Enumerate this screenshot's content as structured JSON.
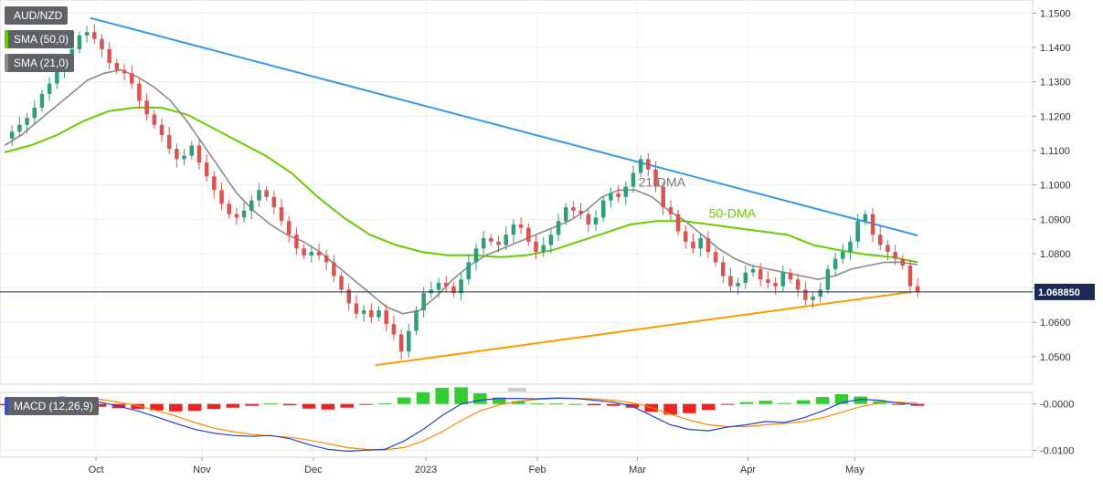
{
  "chart_data": [
    {
      "type": "candlestick",
      "title": "AUD/NZD",
      "legend": [
        {
          "name": "AUD/NZD",
          "color": "#5f6368"
        },
        {
          "name": "SMA (50,0)",
          "color": "#66cc00"
        },
        {
          "name": "SMA (21,0)",
          "color": "#8a8a8a"
        }
      ],
      "ylim": [
        1.042,
        1.1525
      ],
      "yticks": [
        "1.1500",
        "1.1400",
        "1.1300",
        "1.1200",
        "1.1100",
        "1.1000",
        "1.0900",
        "1.0800",
        "1.0700",
        "1.0600",
        "1.0500"
      ],
      "xticks": [
        {
          "label": "Oct",
          "t": 0.096
        },
        {
          "label": "Nov",
          "t": 0.207
        },
        {
          "label": "Dec",
          "t": 0.324
        },
        {
          "label": "2023",
          "t": 0.442
        },
        {
          "label": "Feb",
          "t": 0.559
        },
        {
          "label": "Mar",
          "t": 0.664
        },
        {
          "label": "Apr",
          "t": 0.78
        },
        {
          "label": "May",
          "t": 0.892
        }
      ],
      "current_price": {
        "label": "1.068850",
        "value": 1.06885
      },
      "annotations": [
        {
          "text": "21-DMA",
          "t": 0.665,
          "y": 1.0995,
          "color": "#777777"
        },
        {
          "text": "50-DMA",
          "t": 0.739,
          "y": 1.0905,
          "color": "#66cc00"
        }
      ],
      "trendlines": [
        {
          "name": "resistance",
          "color": "#3399ee",
          "points": [
            [
              0.09,
              1.1486
            ],
            [
              0.958,
              1.0853
            ]
          ]
        },
        {
          "name": "support",
          "color": "#ff9900",
          "points": [
            [
              0.389,
              1.0475
            ],
            [
              0.95,
              1.0688
            ]
          ]
        }
      ],
      "closes": [
        1.1135,
        1.1155,
        1.1175,
        1.1195,
        1.1225,
        1.1265,
        1.1295,
        1.1335,
        1.1355,
        1.1395,
        1.1435,
        1.1445,
        1.1425,
        1.1395,
        1.1355,
        1.1335,
        1.1325,
        1.1295,
        1.1245,
        1.1205,
        1.1175,
        1.1145,
        1.1105,
        1.1075,
        1.1085,
        1.1115,
        1.1065,
        1.1025,
        1.0985,
        1.0945,
        1.0915,
        1.0905,
        1.0925,
        1.0955,
        1.0985,
        1.0965,
        1.0935,
        1.0895,
        1.0855,
        1.0815,
        1.0795,
        1.0805,
        1.0795,
        1.0775,
        1.0735,
        1.0695,
        1.0655,
        1.0625,
        1.0635,
        1.0615,
        1.0635,
        1.0595,
        1.0565,
        1.0515,
        1.0575,
        1.0635,
        1.0685,
        1.0695,
        1.0715,
        1.0705,
        1.0685,
        1.0725,
        1.0775,
        1.0815,
        1.0845,
        1.0835,
        1.0825,
        1.0855,
        1.0885,
        1.0875,
        1.0835,
        1.0805,
        1.0825,
        1.0855,
        1.0895,
        1.0935,
        1.0925,
        1.0915,
        1.0885,
        1.0905,
        1.0955,
        1.0975,
        1.0965,
        1.0995,
        1.1035,
        1.1075,
        1.1045,
        1.0995,
        1.0935,
        1.0915,
        1.0865,
        1.0835,
        1.0815,
        1.0845,
        1.0805,
        1.0775,
        1.0735,
        1.0705,
        1.0715,
        1.0745,
        1.0755,
        1.0725,
        1.0715,
        1.0705,
        1.0745,
        1.0725,
        1.0695,
        1.0665,
        1.0675,
        1.0695,
        1.0755,
        1.0785,
        1.0805,
        1.0835,
        1.0895,
        1.0915,
        1.0855,
        1.0825,
        1.0805,
        1.0785,
        1.0765,
        1.0705,
        1.06885
      ],
      "sma_21": [
        1.1115,
        1.1145,
        1.1185,
        1.1225,
        1.1265,
        1.1305,
        1.1325,
        1.1335,
        1.1315,
        1.1285,
        1.1245,
        1.1185,
        1.1115,
        1.1045,
        1.0975,
        1.0925,
        1.0885,
        1.0855,
        1.0835,
        1.0805,
        1.0765,
        1.0725,
        1.0685,
        1.0645,
        1.0625,
        1.0635,
        1.0675,
        1.0725,
        1.0765,
        1.0795,
        1.0815,
        1.0835,
        1.0855,
        1.0875,
        1.0895,
        1.0925,
        1.0965,
        1.0985,
        1.0985,
        1.0965,
        1.0925,
        1.0895,
        1.0855,
        1.0815,
        1.0785,
        1.0765,
        1.0755,
        1.0745,
        1.0735,
        1.0725,
        1.0735,
        1.0755,
        1.0765,
        1.0775,
        1.0775,
        1.0768
      ],
      "sma_50": [
        1.1095,
        1.1115,
        1.1145,
        1.1185,
        1.1215,
        1.1225,
        1.1225,
        1.1205,
        1.1165,
        1.1125,
        1.1085,
        1.1035,
        1.0965,
        1.0905,
        1.0855,
        1.0825,
        1.0805,
        1.0795,
        1.0795,
        1.079,
        1.0795,
        1.081,
        1.0835,
        1.086,
        1.0885,
        1.0895,
        1.0895,
        1.0885,
        1.0875,
        1.0865,
        1.0855,
        1.0825,
        1.081,
        1.0798,
        1.079,
        1.0775
      ]
    },
    {
      "type": "macd",
      "title": "MACD (12,26,9)",
      "ylim": [
        -0.0115,
        0.0025
      ],
      "yticks": [
        "-0.0000",
        "-0.0100"
      ],
      "macd": [
        -0.0003,
        0.0005,
        0.0012,
        0.0015,
        0.0012,
        0.0004,
        -0.0005,
        -0.0015,
        -0.0028,
        -0.0042,
        -0.0055,
        -0.0063,
        -0.0068,
        -0.007,
        -0.0068,
        -0.0075,
        -0.0088,
        -0.0098,
        -0.0102,
        -0.01,
        -0.0098,
        -0.008,
        -0.0055,
        -0.0025,
        0.0,
        0.0008,
        0.0012,
        0.0012,
        0.0011,
        0.0013,
        0.0012,
        0.0008,
        0.0004,
        -0.0005,
        -0.0025,
        -0.0045,
        -0.0055,
        -0.0058,
        -0.005,
        -0.0045,
        -0.0038,
        -0.004,
        -0.003,
        -0.0015,
        0.0003,
        0.001,
        0.0008,
        0.0002,
        -0.0002
      ],
      "signal": [
        0.0,
        0.0002,
        0.0006,
        0.001,
        0.0012,
        0.001,
        0.0004,
        -0.0004,
        -0.0014,
        -0.0026,
        -0.004,
        -0.0052,
        -0.006,
        -0.0066,
        -0.0069,
        -0.0072,
        -0.0078,
        -0.0086,
        -0.0094,
        -0.0098,
        -0.0099,
        -0.0094,
        -0.008,
        -0.006,
        -0.0036,
        -0.0015,
        -0.0002,
        0.0006,
        0.001,
        0.0012,
        0.0012,
        0.0011,
        0.0008,
        0.0003,
        -0.0008,
        -0.0022,
        -0.0035,
        -0.0045,
        -0.0049,
        -0.0049,
        -0.0045,
        -0.0042,
        -0.0038,
        -0.003,
        -0.0018,
        -0.0006,
        0.0002,
        0.0004,
        0.0002
      ]
    }
  ]
}
